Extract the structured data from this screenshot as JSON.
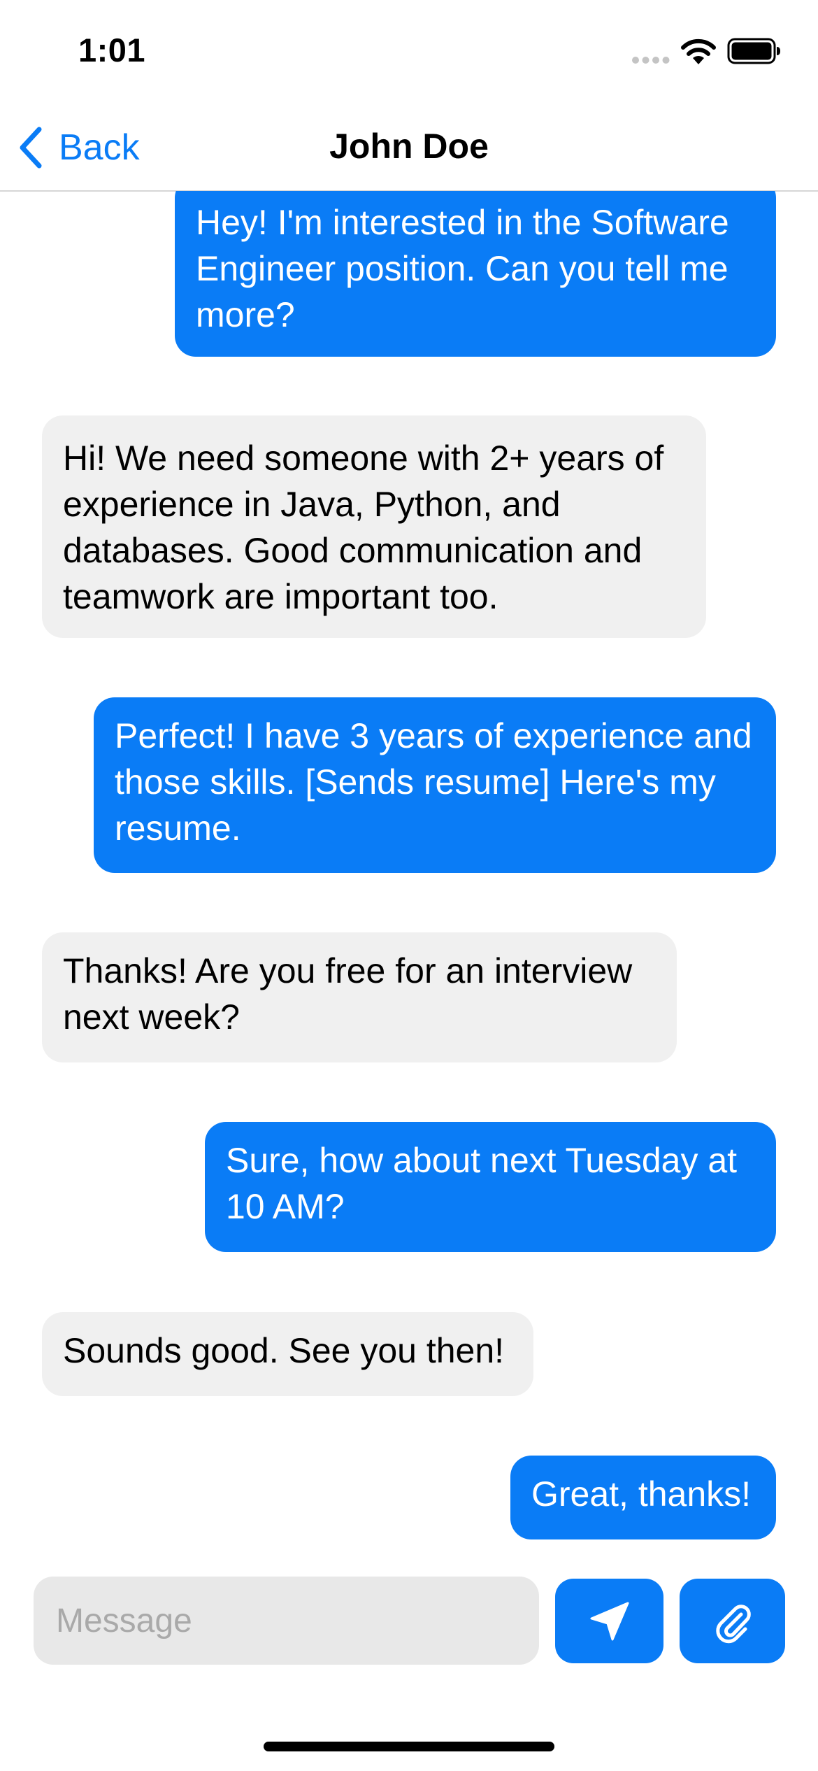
{
  "status_bar": {
    "time": "1:01"
  },
  "nav": {
    "back_label": "Back",
    "title": "John Doe"
  },
  "messages": [
    {
      "side": "sent",
      "text": "Hey! I'm interested in the Software Engineer position. Can you tell me more?"
    },
    {
      "side": "received",
      "text": "Hi! We need someone with 2+ years of experience in Java, Python, and databases. Good communication and teamwork are important too."
    },
    {
      "side": "sent",
      "text": "Perfect! I have 3 years of experience and those skills. [Sends resume] Here's my resume."
    },
    {
      "side": "received",
      "text": "Thanks! Are you free for an interview next week?"
    },
    {
      "side": "sent",
      "text": "Sure, how about next Tuesday at 10 AM?"
    },
    {
      "side": "received",
      "text": "Sounds good. See you then!"
    },
    {
      "side": "sent",
      "text": "Great, thanks!"
    }
  ],
  "composer": {
    "placeholder": "Message",
    "value": "",
    "send_icon": "paper-plane-icon",
    "attach_icon": "paperclip-icon"
  },
  "colors": {
    "accent": "#0a7cf6",
    "received_bubble": "#f0f0f0",
    "input_background": "#e8e8e8"
  }
}
